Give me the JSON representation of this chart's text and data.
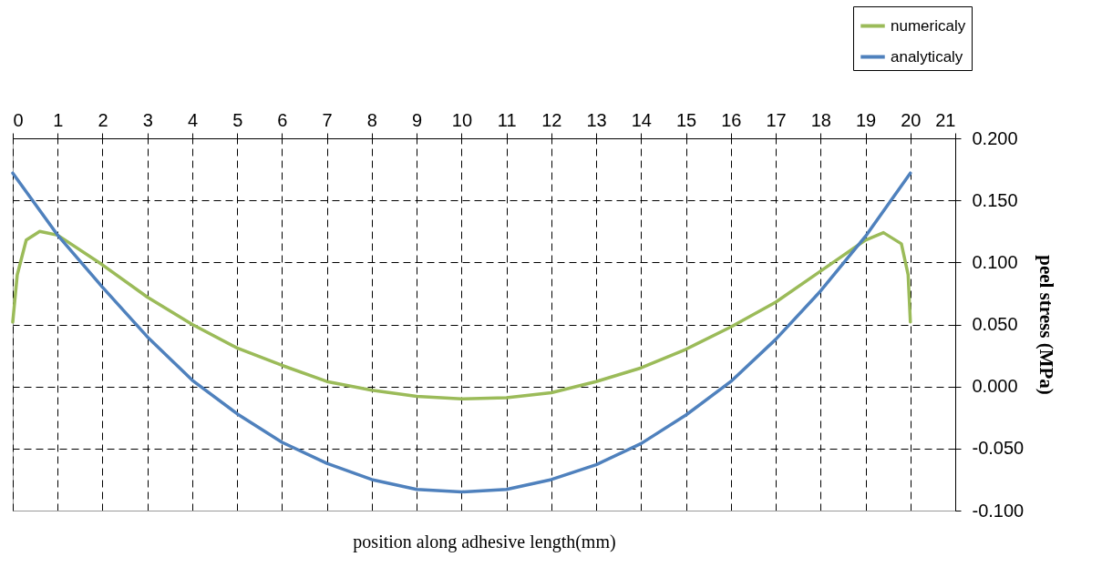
{
  "chart_data": {
    "type": "line",
    "xlabel": "position along adhesive length(mm)",
    "ylabel": "peel stress (MPa)",
    "xlim": [
      0,
      21
    ],
    "xticks": [
      0,
      1,
      2,
      3,
      4,
      5,
      6,
      7,
      8,
      9,
      10,
      11,
      12,
      13,
      14,
      15,
      16,
      17,
      18,
      19,
      20,
      21
    ],
    "ylim": [
      -0.1,
      0.2
    ],
    "yticks": [
      {
        "value": -0.1,
        "label": "-0.100"
      },
      {
        "value": -0.05,
        "label": "-0.050"
      },
      {
        "value": 0,
        "label": "0.000"
      },
      {
        "value": 0.05,
        "label": "0.050"
      },
      {
        "value": 0.1,
        "label": "0.100"
      },
      {
        "value": 0.15,
        "label": "0.150"
      },
      {
        "value": 0.2,
        "label": "0.200"
      }
    ],
    "grid": true,
    "legend": "top right",
    "line_style": "solid",
    "marker": "none",
    "series": [
      {
        "name": "numericaly",
        "color": "#9bbb59",
        "x": [
          0,
          0.1,
          0.3,
          0.6,
          1,
          2,
          3,
          4,
          5,
          6,
          7,
          8,
          9,
          10,
          11,
          12,
          13,
          14,
          15,
          16,
          17,
          18,
          19,
          19.4,
          19.8,
          19.95,
          20
        ],
        "values": [
          0.052,
          0.09,
          0.118,
          0.125,
          0.122,
          0.098,
          0.072,
          0.05,
          0.031,
          0.017,
          0.004,
          -0.003,
          -0.008,
          -0.01,
          -0.009,
          -0.005,
          0.004,
          0.015,
          0.03,
          0.048,
          0.068,
          0.093,
          0.118,
          0.124,
          0.115,
          0.09,
          0.052
        ]
      },
      {
        "name": "analyticaly",
        "color": "#4f81bd",
        "x": [
          0,
          1,
          2,
          3,
          4,
          5,
          6,
          7,
          8,
          9,
          10,
          11,
          12,
          13,
          14,
          15,
          16,
          17,
          18,
          19,
          20
        ],
        "values": [
          0.172,
          0.122,
          0.08,
          0.04,
          0.005,
          -0.022,
          -0.045,
          -0.062,
          -0.075,
          -0.083,
          -0.085,
          -0.083,
          -0.075,
          -0.063,
          -0.046,
          -0.023,
          0.004,
          0.038,
          0.077,
          0.121,
          0.172
        ]
      }
    ]
  }
}
